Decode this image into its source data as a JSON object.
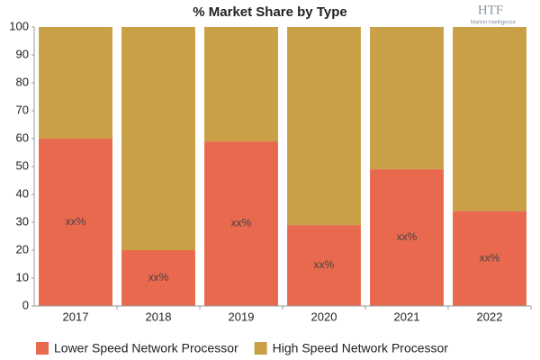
{
  "chart_data": {
    "type": "stacked_bar",
    "title": "% Market Share by Type",
    "logo": {
      "text": "HTF",
      "subtitle": "Market Intelligence"
    },
    "categories": [
      "2017",
      "2018",
      "2019",
      "2020",
      "2021",
      "2022"
    ],
    "series": [
      {
        "name": "Lower Speed Network Processor",
        "color": "#e8694d",
        "values": [
          60,
          20,
          59,
          29,
          49,
          34
        ],
        "value_labels": [
          "xx%",
          "xx%",
          "xx%",
          "xx%",
          "xx%",
          "xx%"
        ]
      },
      {
        "name": "High Speed Network Processor",
        "color": "#c9a046",
        "values": [
          40,
          80,
          41,
          71,
          51,
          66
        ]
      }
    ],
    "ylim": [
      0,
      100
    ],
    "yticks": [
      0,
      10,
      20,
      30,
      40,
      50,
      60,
      70,
      80,
      90,
      100
    ],
    "grid": false,
    "legend": "bottom"
  }
}
